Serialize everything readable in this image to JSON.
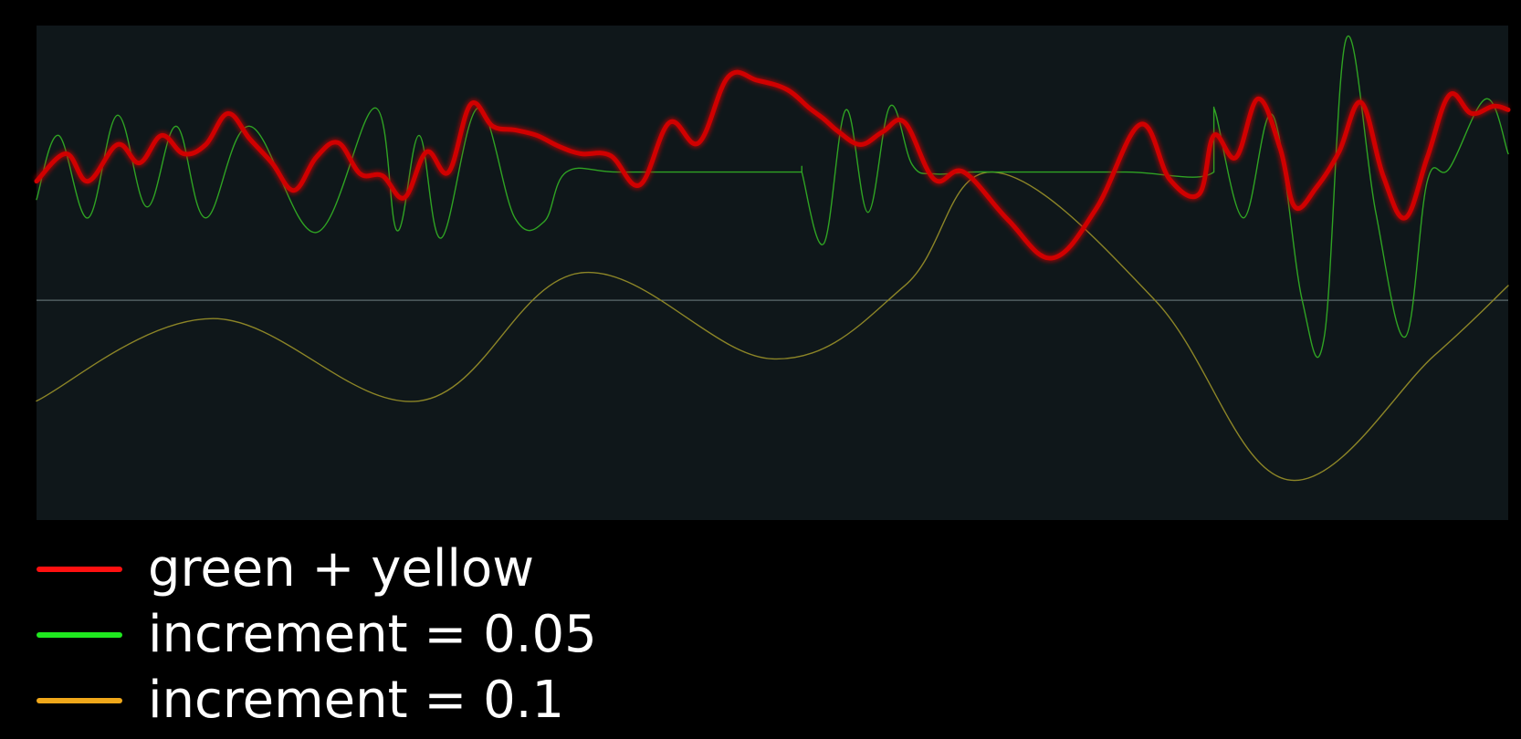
{
  "chart_data": {
    "type": "line",
    "title": "",
    "xlabel": "",
    "ylabel": "",
    "grid": false,
    "legend_position": "bottom-left",
    "baseline_y": 0,
    "xlim": [
      0,
      1
    ],
    "ylim": [
      -1.2,
      1.5
    ],
    "colors": {
      "background": "#000000",
      "plot_background": "#0f171a",
      "baseline": "#5d6c6e"
    },
    "series": [
      {
        "name": "green + yellow",
        "color": "#d00000",
        "legend_color": "#ff1010",
        "x": [
          0,
          0.02,
          0.035,
          0.055,
          0.07,
          0.085,
          0.1,
          0.115,
          0.13,
          0.145,
          0.16,
          0.175,
          0.19,
          0.205,
          0.22,
          0.235,
          0.25,
          0.265,
          0.28,
          0.295,
          0.31,
          0.325,
          0.34,
          0.355,
          0.37,
          0.39,
          0.41,
          0.43,
          0.45,
          0.47,
          0.49,
          0.51,
          0.525,
          0.535,
          0.545,
          0.56,
          0.575,
          0.59,
          0.61,
          0.63,
          0.66,
          0.69,
          0.72,
          0.75,
          0.77,
          0.79,
          0.8,
          0.815,
          0.83,
          0.845,
          0.855,
          0.87,
          0.885,
          0.9,
          0.915,
          0.93,
          0.945,
          0.96,
          0.975,
          0.99,
          1
        ],
        "y": [
          0.65,
          0.8,
          0.65,
          0.85,
          0.75,
          0.9,
          0.8,
          0.85,
          1.02,
          0.88,
          0.75,
          0.6,
          0.78,
          0.86,
          0.69,
          0.68,
          0.56,
          0.81,
          0.7,
          1.07,
          0.95,
          0.93,
          0.9,
          0.84,
          0.8,
          0.79,
          0.63,
          0.97,
          0.86,
          1.22,
          1.2,
          1.15,
          1.05,
          0.99,
          0.92,
          0.85,
          0.92,
          0.97,
          0.66,
          0.7,
          0.44,
          0.23,
          0.5,
          0.96,
          0.66,
          0.58,
          0.9,
          0.78,
          1.1,
          0.83,
          0.51,
          0.62,
          0.81,
          1.08,
          0.68,
          0.45,
          0.78,
          1.12,
          1.02,
          1.06,
          1.04
        ]
      },
      {
        "name": "increment = 0.05",
        "color": "#2fa323",
        "legend_color": "#1fe81f",
        "x": [
          0,
          0.015,
          0.035,
          0.055,
          0.075,
          0.095,
          0.115,
          0.145,
          0.19,
          0.23,
          0.245,
          0.26,
          0.275,
          0.3,
          0.325,
          0.345,
          0.36,
          0.395,
          0.46,
          0.52,
          0.52,
          0.535,
          0.55,
          0.565,
          0.58,
          0.595,
          0.61,
          0.635,
          0.66,
          0.74,
          0.8,
          0.8,
          0.82,
          0.84,
          0.86,
          0.875,
          0.89,
          0.91,
          0.93,
          0.945,
          0.96,
          0.985,
          1
        ],
        "y": [
          0.55,
          0.9,
          0.45,
          1.01,
          0.51,
          0.95,
          0.45,
          0.95,
          0.37,
          1.05,
          0.38,
          0.9,
          0.34,
          1.05,
          0.45,
          0.43,
          0.7,
          0.7,
          0.7,
          0.7,
          0.7,
          0.31,
          1.04,
          0.48,
          1.06,
          0.74,
          0.69,
          0.7,
          0.7,
          0.7,
          0.7,
          1.05,
          0.45,
          1.01,
          0.0,
          -0.2,
          1.43,
          0.48,
          -0.2,
          0.65,
          0.72,
          1.1,
          0.8
        ]
      },
      {
        "name": "increment = 0.1",
        "color": "#8c8527",
        "legend_color": "#f0a81a",
        "x": [
          0,
          0.12,
          0.26,
          0.37,
          0.5,
          0.59,
          0.65,
          0.76,
          0.85,
          0.95,
          1
        ],
        "y": [
          -0.55,
          -0.1,
          -0.55,
          0.15,
          -0.32,
          0.08,
          0.7,
          0.0,
          -0.98,
          -0.3,
          0.08
        ]
      }
    ]
  }
}
